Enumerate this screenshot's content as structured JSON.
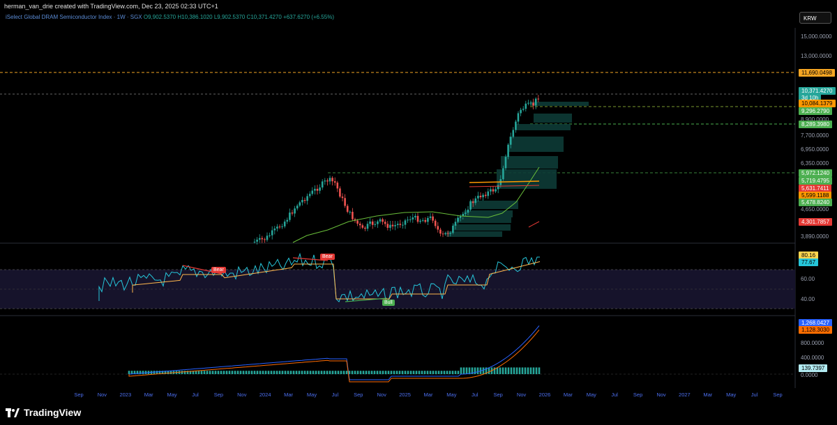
{
  "header": {
    "text": "herman_van_drie created with TradingView.com, Dec 23, 2025 02:33 UTC+1"
  },
  "symbol": {
    "name": "iSelect Global DRAM Semiconductor Index · 1W · SGX",
    "ohlc": "O9,902.5370 H10,386.1020 L9,902.5370 C10,371.4270 +637.6270 (+6.55%)"
  },
  "currency_button": "KRW",
  "price_axis": [
    "15,000.0000",
    "13,000.0000",
    "8,900.0000",
    "7,700.0000",
    "6,950.0000",
    "6,350.0000",
    "4,650.0000",
    "3,890.0000"
  ],
  "price_labels": [
    {
      "text": "11,690.0498",
      "color": "#f5a623",
      "text_color": "#000"
    },
    {
      "text": "10,371.4270",
      "color": "#26a69a",
      "text_color": "#fff"
    },
    {
      "text": "3d 10h",
      "color": "#26a69a",
      "text_color": "#fff"
    },
    {
      "text": "10,084.1379",
      "color": "#ff9800",
      "text_color": "#000"
    },
    {
      "text": "9,296.2790",
      "color": "#4caf50",
      "text_color": "#fff"
    },
    {
      "text": "8,289.3980",
      "color": "#4caf50",
      "text_color": "#fff"
    },
    {
      "text": "5,972.1240",
      "color": "#4caf50",
      "text_color": "#fff"
    },
    {
      "text": "5,719.4795",
      "color": "#4caf50",
      "text_color": "#fff"
    },
    {
      "text": "5,631.7411",
      "color": "#e53935",
      "text_color": "#fff"
    },
    {
      "text": "5,599.1188",
      "color": "#ff9800",
      "text_color": "#000"
    },
    {
      "text": "5,478.8240",
      "color": "#4caf50",
      "text_color": "#fff"
    },
    {
      "text": "4,301.7857",
      "color": "#e53935",
      "text_color": "#fff"
    }
  ],
  "rsi": {
    "axis": [
      "60.00",
      "40.00"
    ],
    "labels": [
      {
        "text": "80.16",
        "color": "#ffd54f",
        "text_color": "#000"
      },
      {
        "text": "77.67",
        "color": "#26c6da",
        "text_color": "#000"
      }
    ],
    "signals": [
      {
        "text": "Bear",
        "color": "#e53935"
      },
      {
        "text": "Bear",
        "color": "#e53935"
      },
      {
        "text": "Bull",
        "color": "#4caf50"
      }
    ]
  },
  "macd": {
    "axis": [
      "800.0000",
      "400.0000",
      "0.0000"
    ],
    "labels": [
      {
        "text": "1,268.0427",
        "color": "#2962ff",
        "text_color": "#fff"
      },
      {
        "text": "1,128.3030",
        "color": "#ff6d00",
        "text_color": "#000"
      },
      {
        "text": "139.7397",
        "color": "#b2ebf2",
        "text_color": "#000"
      }
    ]
  },
  "time_axis": [
    "Sep",
    "Nov",
    "2023",
    "Mar",
    "May",
    "Jul",
    "Sep",
    "Nov",
    "2024",
    "Mar",
    "May",
    "Jul",
    "Sep",
    "Nov",
    "2025",
    "Mar",
    "May",
    "Jul",
    "Sep",
    "Nov",
    "2026",
    "Mar",
    "May",
    "Jul",
    "Sep",
    "Nov",
    "2027",
    "Mar",
    "May",
    "Jul",
    "Sep"
  ],
  "logo": {
    "word": "TradingView"
  },
  "colors": {
    "up": "#26a69a",
    "down": "#ef5350",
    "background": "#000000",
    "zone": "#0d3b36"
  }
}
